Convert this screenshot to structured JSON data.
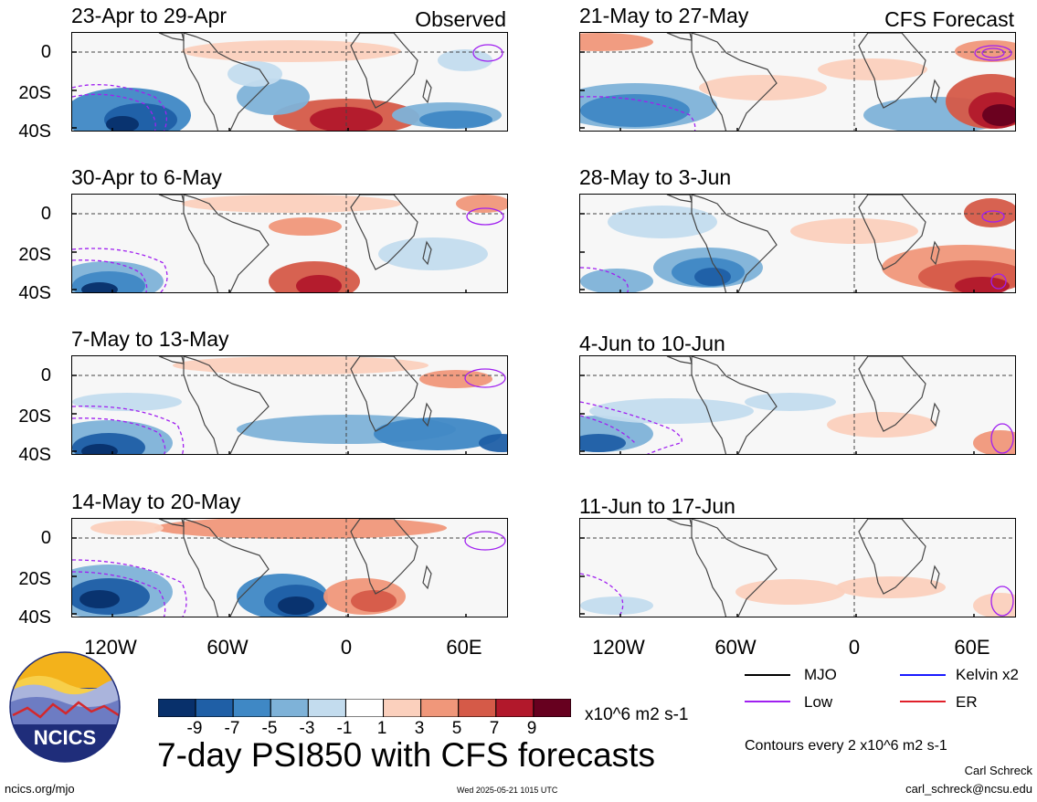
{
  "chart_data": {
    "type": "heatmap",
    "title": "7-day PSI850 with CFS forecasts",
    "variable": "PSI850",
    "units": "x10^6 m2 s-1",
    "contour_note": "Contours every 2 x10^6 m2 s-1",
    "x_ticks": [
      "120W",
      "60W",
      "0",
      "60E"
    ],
    "y_ticks": [
      "0",
      "20S",
      "40S"
    ],
    "observed_label": "Observed",
    "forecast_label": "CFS Forecast",
    "panels_observed": [
      {
        "title": "23-Apr to 29-Apr"
      },
      {
        "title": "30-Apr to 6-May"
      },
      {
        "title": "7-May to 13-May"
      },
      {
        "title": "14-May to 20-May"
      }
    ],
    "panels_forecast": [
      {
        "title": "21-May to 27-May"
      },
      {
        "title": "28-May to 3-Jun"
      },
      {
        "title": "4-Jun to 10-Jun"
      },
      {
        "title": "11-Jun to 17-Jun"
      }
    ],
    "colorbar": {
      "labels": [
        "-9",
        "-7",
        "-5",
        "-3",
        "-1",
        "1",
        "3",
        "5",
        "7",
        "9"
      ],
      "colors": [
        "#08306b",
        "#1f5fa6",
        "#3f88c5",
        "#7eb2d8",
        "#c3dcee",
        "#ffffff",
        "#fbd0bd",
        "#f0977a",
        "#d55a48",
        "#b2182b",
        "#67001f"
      ]
    },
    "legend": [
      {
        "label": "MJO",
        "color": "#000000"
      },
      {
        "label": "Kelvin x2",
        "color": "#1a1aff"
      },
      {
        "label": "Low",
        "color": "#a020f0"
      },
      {
        "label": "ER",
        "color": "#e0202a"
      }
    ]
  },
  "footer": {
    "logo_text": "NCICS",
    "url": "ncics.org/mjo",
    "timestamp": "Wed 2025-05-21 1015 UTC",
    "author": "Carl Schreck",
    "email": "carl_schreck@ncsu.edu"
  }
}
